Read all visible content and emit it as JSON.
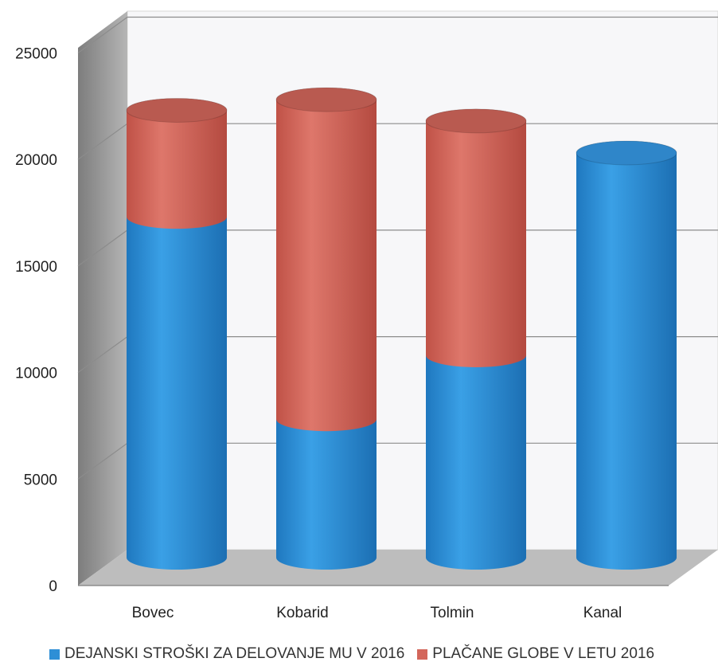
{
  "chart_data": {
    "type": "bar",
    "stacked": true,
    "style": "3d-cylinder",
    "categories": [
      "Bovec",
      "Kobarid",
      "Tolmin",
      "Kanal"
    ],
    "series": [
      {
        "name": "DEJANSKI STROŠKI ZA DELOVANJE MU V 2016",
        "color": "#2e8fd6",
        "values": [
          16000,
          6500,
          9500,
          19000
        ]
      },
      {
        "name": "PLAČANE GLOBE V LETU 2016",
        "color": "#d3665b",
        "values": [
          5000,
          15000,
          11000,
          0
        ]
      }
    ],
    "yticks": [
      "0",
      "5000",
      "10000",
      "15000",
      "20000",
      "25000"
    ],
    "ylim": [
      0,
      25000
    ],
    "grid": true,
    "legend_position": "bottom"
  }
}
